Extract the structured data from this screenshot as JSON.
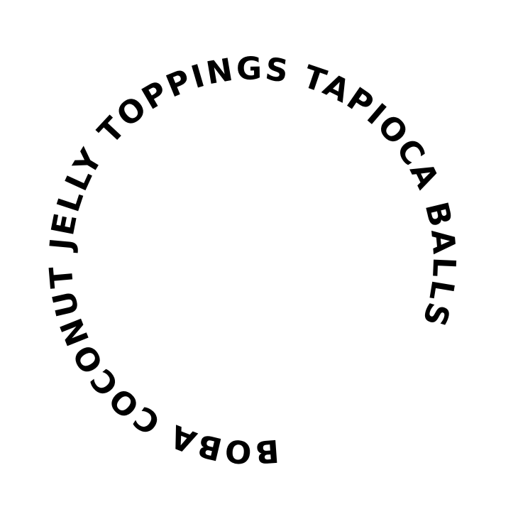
{
  "circular_text": "BOBA COCONUT JELLY TOPPINGS TAPIOCA BALLS",
  "text_color": "#000000",
  "background_color": "#ffffff"
}
